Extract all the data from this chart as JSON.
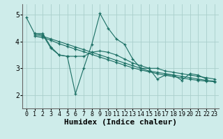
{
  "xlabel": "Humidex (Indice chaleur)",
  "background_color": "#ceecea",
  "grid_color": "#aacfcc",
  "line_color": "#1a6e63",
  "xlim": [
    -0.5,
    23.5
  ],
  "ylim": [
    1.5,
    5.4
  ],
  "xticks": [
    0,
    1,
    2,
    3,
    4,
    5,
    6,
    7,
    8,
    9,
    10,
    11,
    12,
    13,
    14,
    15,
    16,
    17,
    18,
    19,
    20,
    21,
    22,
    23
  ],
  "yticks": [
    2,
    3,
    4,
    5
  ],
  "series": [
    {
      "x": [
        0,
        1,
        2,
        3,
        4,
        5,
        6,
        7,
        8,
        9,
        10,
        11,
        12,
        13,
        14,
        15,
        16,
        17,
        18,
        19,
        20,
        21,
        22,
        23
      ],
      "y": [
        4.9,
        4.3,
        4.3,
        3.8,
        3.5,
        3.45,
        2.05,
        3.0,
        3.9,
        5.05,
        4.5,
        4.1,
        3.9,
        3.35,
        3.0,
        3.0,
        2.6,
        2.75,
        2.75,
        2.55,
        2.8,
        2.75,
        2.6,
        null
      ]
    },
    {
      "x": [
        1,
        2,
        3,
        4,
        5,
        6,
        7,
        8,
        9,
        10,
        11,
        12,
        13,
        14,
        15,
        16,
        17,
        18,
        19,
        20,
        21,
        22,
        23
      ],
      "y": [
        4.3,
        4.25,
        3.75,
        3.5,
        3.45,
        3.45,
        3.45,
        3.6,
        3.65,
        3.6,
        3.5,
        3.35,
        3.2,
        3.1,
        3.0,
        3.0,
        2.9,
        2.85,
        2.8,
        2.75,
        2.7,
        2.65,
        2.6
      ]
    },
    {
      "x": [
        1,
        2,
        3,
        4,
        5,
        6,
        7,
        8,
        9,
        10,
        11,
        12,
        13,
        14,
        15,
        16,
        17,
        18,
        19,
        20,
        21,
        22,
        23
      ],
      "y": [
        4.25,
        4.2,
        4.1,
        4.0,
        3.9,
        3.8,
        3.7,
        3.6,
        3.5,
        3.4,
        3.3,
        3.2,
        3.1,
        3.0,
        2.9,
        2.85,
        2.8,
        2.75,
        2.7,
        2.65,
        2.6,
        2.55,
        2.52
      ]
    },
    {
      "x": [
        1,
        2,
        3,
        4,
        5,
        6,
        7,
        8,
        9,
        10,
        11,
        12,
        13,
        14,
        15,
        16,
        17,
        18,
        19,
        20,
        21,
        22,
        23
      ],
      "y": [
        4.2,
        4.15,
        4.05,
        3.92,
        3.82,
        3.72,
        3.62,
        3.52,
        3.42,
        3.32,
        3.22,
        3.12,
        3.02,
        2.94,
        2.87,
        2.8,
        2.74,
        2.69,
        2.64,
        2.59,
        2.55,
        2.52,
        2.5
      ]
    }
  ],
  "fontsize_xlabel": 8,
  "fontsize_xtick": 6,
  "fontsize_ytick": 7
}
